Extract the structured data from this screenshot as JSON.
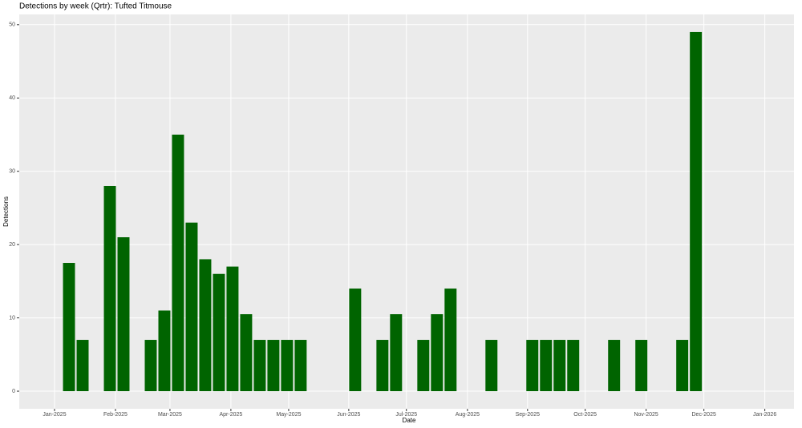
{
  "chart_data": {
    "type": "bar",
    "title": "Detections by week (Qrtr): Tufted Titmouse",
    "x_label": "Date",
    "y_label": "Detections",
    "color": "#006400",
    "grid": true,
    "categories": [
      null,
      null,
      null,
      null,
      null,
      null,
      null,
      null,
      null,
      null,
      null,
      null,
      null,
      null,
      null,
      null,
      null,
      null,
      null,
      null,
      null,
      null,
      null,
      null,
      null,
      null,
      null,
      null,
      null,
      null,
      null,
      null,
      null,
      null,
      null,
      null,
      null,
      null,
      null,
      null,
      null,
      null,
      null,
      null,
      null,
      null,
      null
    ],
    "values": [
      17.5,
      7,
      null,
      28,
      21,
      null,
      7,
      11,
      35,
      23,
      18,
      16,
      17,
      10.5,
      7,
      7,
      7,
      7,
      null,
      null,
      null,
      14,
      null,
      7,
      10.5,
      null,
      7,
      10.5,
      14,
      null,
      null,
      7,
      null,
      null,
      7,
      7,
      7,
      7,
      null,
      null,
      7,
      null,
      7,
      null,
      null,
      7,
      49
    ],
    "xlim": [
      -3.65,
      53.2
    ],
    "xticks": [
      {
        "value": -1.06,
        "label": "Jan-2025"
      },
      {
        "value": 3.41,
        "label": "Feb-2025"
      },
      {
        "value": 7.41,
        "label": "Mar-2025"
      },
      {
        "value": 11.88,
        "label": "Apr-2025"
      },
      {
        "value": 16.12,
        "label": "May-2025"
      },
      {
        "value": 20.53,
        "label": "Jun-2025"
      },
      {
        "value": 24.76,
        "label": "Jul-2025"
      },
      {
        "value": 29.24,
        "label": "Aug-2025"
      },
      {
        "value": 33.65,
        "label": "Sep-2025"
      },
      {
        "value": 37.88,
        "label": "Oct-2025"
      },
      {
        "value": 42.35,
        "label": "Nov-2025"
      },
      {
        "value": 46.59,
        "label": "Dec-2025"
      },
      {
        "value": 51.06,
        "label": "Jan-2026"
      }
    ],
    "ylim": [
      -2.4,
      51.4
    ],
    "yticks": [
      0,
      10,
      20,
      30,
      40,
      50
    ]
  }
}
